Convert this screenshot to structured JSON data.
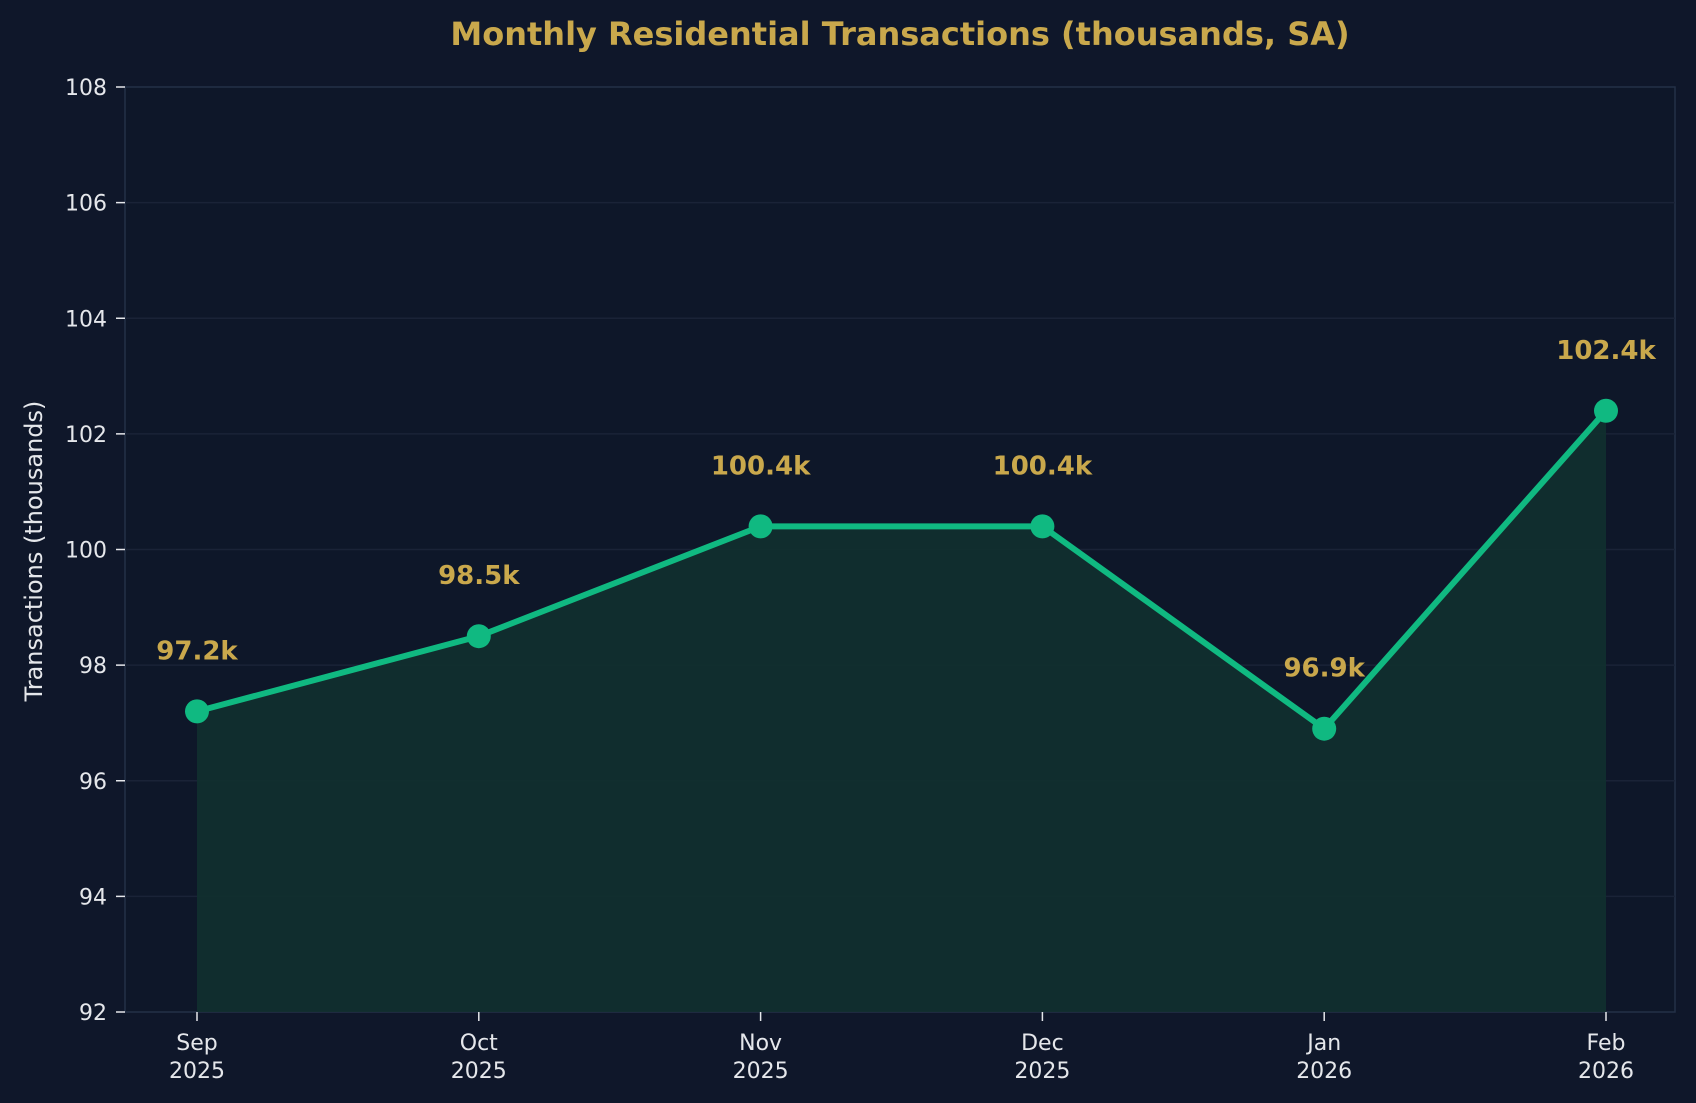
{
  "colors": {
    "background": "#0f172a",
    "plot_background": "#0e1729",
    "line": "#10b981",
    "area_fill": "#11302f",
    "title": "#c9a84c",
    "data_label": "#c9a84c",
    "axis_text": "#e5e7eb",
    "grid": "#1a2337",
    "spine": "#243047"
  },
  "chart_data": {
    "type": "line",
    "title": "Monthly Residential Transactions (thousands, SA)",
    "xlabel": "",
    "ylabel": "Transactions (thousands)",
    "categories": [
      [
        "Sep",
        "2025"
      ],
      [
        "Oct",
        "2025"
      ],
      [
        "Nov",
        "2025"
      ],
      [
        "Dec",
        "2025"
      ],
      [
        "Jan",
        "2026"
      ],
      [
        "Feb",
        "2026"
      ]
    ],
    "series": [
      {
        "values": [
          97.2,
          98.5,
          100.4,
          100.4,
          96.9,
          102.4
        ],
        "marker": "circle",
        "area_fill": true
      }
    ],
    "data_labels": [
      "97.2k",
      "98.5k",
      "100.4k",
      "100.4k",
      "96.9k",
      "102.4k"
    ],
    "ylim": [
      92,
      108
    ],
    "yticks": [
      "92",
      "94",
      "96",
      "98",
      "100",
      "102",
      "104",
      "106",
      "108"
    ],
    "grid": "horizontal",
    "legend": "none"
  }
}
